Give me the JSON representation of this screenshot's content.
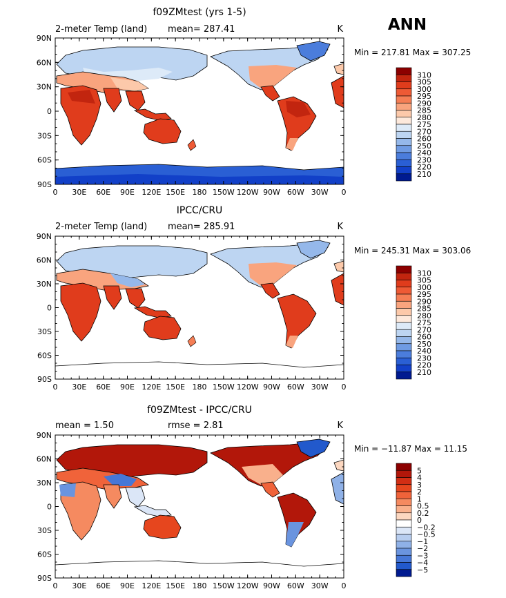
{
  "season": "ANN",
  "lon_labels": [
    "0",
    "30E",
    "60E",
    "90E",
    "120E",
    "150E",
    "180",
    "150W",
    "120W",
    "90W",
    "60W",
    "30W",
    "0"
  ],
  "lat_labels": [
    "90N",
    "60N",
    "30N",
    "0",
    "30S",
    "60S",
    "90S"
  ],
  "panels": [
    {
      "title": "f09ZMtest (yrs 1-5)",
      "left_label": "2-meter Temp (land)",
      "center_label": "mean=  287.41",
      "units": "K",
      "minmax": "Min = 217.81  Max = 307.25",
      "colorbar": [
        "310",
        "305",
        "300",
        "295",
        "290",
        "285",
        "280",
        "275",
        "270",
        "260",
        "250",
        "240",
        "230",
        "220",
        "210"
      ]
    },
    {
      "title": "IPCC/CRU",
      "left_label": "2-meter Temp (land)",
      "center_label": "mean=  285.91",
      "units": "K",
      "minmax": "Min = 245.31  Max = 303.06",
      "colorbar": [
        "310",
        "305",
        "300",
        "295",
        "290",
        "285",
        "280",
        "275",
        "270",
        "260",
        "250",
        "240",
        "230",
        "220",
        "210"
      ]
    },
    {
      "title": "f09ZMtest - IPCC/CRU",
      "left_label": "mean =     1.50",
      "center_label": "rmse =     2.81",
      "units": "K",
      "minmax": "Min = −11.87  Max =  11.15",
      "colorbar": [
        "5",
        "4",
        "3",
        "2",
        "1",
        "0.5",
        "0.2",
        "0",
        "−0.2",
        "−0.5",
        "−1",
        "−2",
        "−3",
        "−4",
        "−5"
      ]
    }
  ],
  "colors": {
    "temp": [
      "#8c0000",
      "#c2250f",
      "#e03c1c",
      "#ee5a35",
      "#f57e55",
      "#f9a47e",
      "#fcc9aa",
      "#fde9dc",
      "#ddeaf8",
      "#bdd5f2",
      "#95b8ea",
      "#6f9be3",
      "#4b7ddc",
      "#2a5fd4",
      "#1240c8",
      "#001a90"
    ],
    "diff": [
      "#8c0000",
      "#b2170a",
      "#d22e14",
      "#e6461e",
      "#f0633a",
      "#f58a60",
      "#f9b08c",
      "#fcd7c0",
      "#ffffff",
      "#dbe6f7",
      "#b7cdef",
      "#8fb1e7",
      "#6a94df",
      "#4677d7",
      "#2259cc",
      "#001a90"
    ]
  }
}
